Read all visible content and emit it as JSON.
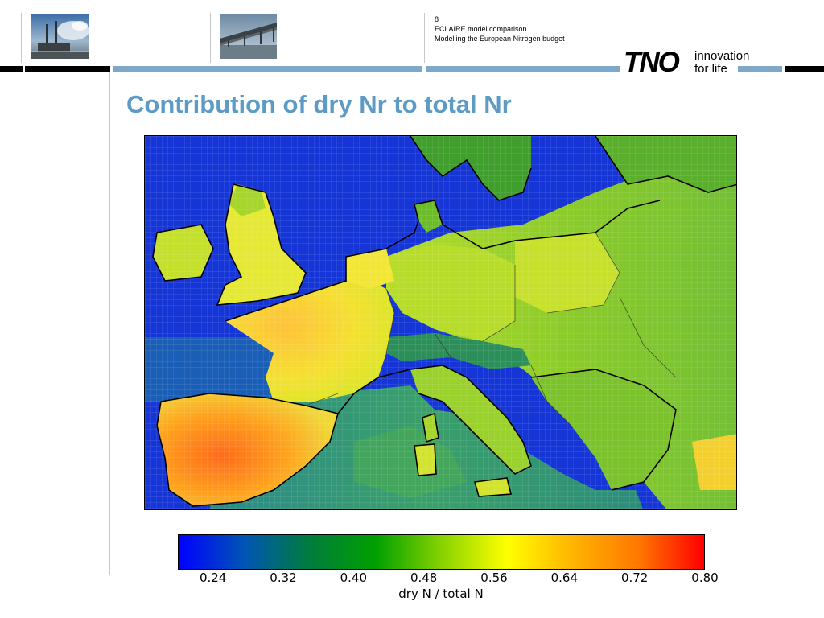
{
  "header": {
    "slide_number": "8",
    "meta_line1": "ECLAIRE model comparison",
    "meta_line2": "Modelling the European Nitrogen budget",
    "logo_wordmark": "TNO",
    "logo_tagline_1": "innovation",
    "logo_tagline_2": "for life"
  },
  "slide": {
    "title": "Contribution of dry Nr to total Nr"
  },
  "photos": [
    {
      "subject": "power-plant-chimneys"
    },
    {
      "subject": "bridge"
    }
  ],
  "colors": {
    "accent_blue": "#5b9bc5",
    "bar_blue": "#7ea8c9",
    "sea": "#1535d6"
  },
  "colorbar": {
    "label": "dry N / total N",
    "ticks": [
      "0.24",
      "0.32",
      "0.40",
      "0.48",
      "0.56",
      "0.64",
      "0.72",
      "0.80"
    ],
    "tick_values": [
      0.24,
      0.32,
      0.4,
      0.48,
      0.56,
      0.64,
      0.72,
      0.8
    ],
    "range": [
      0.2,
      0.8
    ],
    "colormap": [
      "#0000ff",
      "#0055b4",
      "#007d3c",
      "#00a000",
      "#87d200",
      "#ffff00",
      "#ffb400",
      "#ff7800",
      "#ff0000"
    ]
  }
}
